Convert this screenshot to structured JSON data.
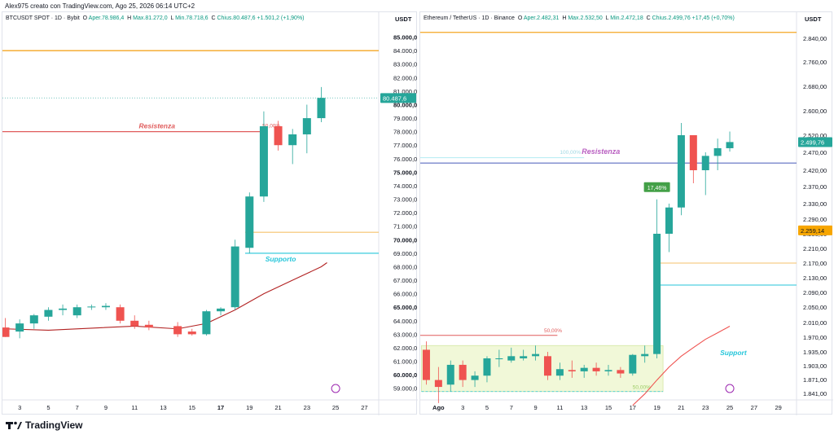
{
  "header": {
    "creator": "Alex975 creato con TradingView.com, Ago 25, 2026 06:14 UTC+2"
  },
  "footer": {
    "brand": "TradingView"
  },
  "chart_data": [
    {
      "type": "candlestick",
      "legend": {
        "symbol": "BTCUSDT SPOT · 1D · Bybit",
        "open_label": "O",
        "open": "Aper.78.986,4",
        "high_label": "H",
        "high": "Max.81.272,0",
        "low_label": "L",
        "low": "Min.78.718,6",
        "close_label": "C",
        "close": "Chius.80.487,6",
        "change": "+1.501,2 (+1,90%)"
      },
      "unit": "USDT",
      "ylim": [
        58500,
        86000
      ],
      "y_ticks": [
        "59.000,0",
        "60.000,0",
        "61.000,0",
        "62.000,0",
        "63.000,0",
        "64.000,0",
        "65.000,0",
        "66.000,0",
        "67.000,0",
        "68.000,0",
        "69.000,0",
        "70.000,0",
        "71.000,0",
        "72.000,0",
        "73.000,0",
        "74.000,0",
        "75.000,0",
        "76.000,0",
        "77.000,0",
        "78.000,0",
        "79.000,0",
        "80.000,0",
        "81.000,0",
        "82.000,0",
        "83.000,0",
        "84.000,0",
        "85.000,0"
      ],
      "y_tick_values": [
        59000,
        60000,
        61000,
        62000,
        63000,
        64000,
        65000,
        66000,
        67000,
        68000,
        69000,
        70000,
        71000,
        72000,
        73000,
        74000,
        75000,
        76000,
        77000,
        78000,
        79000,
        80000,
        81000,
        82000,
        83000,
        84000,
        85000
      ],
      "x_ticks": [
        "3",
        "5",
        "7",
        "9",
        "11",
        "13",
        "15",
        "17",
        "19",
        "21",
        "23",
        "25",
        "27"
      ],
      "x_tick_values": [
        3,
        5,
        7,
        9,
        11,
        13,
        15,
        17,
        19,
        21,
        23,
        25,
        27
      ],
      "xlim": [
        1.8,
        28
      ],
      "last_price": "80.487,6",
      "last_price_value": 80487.6,
      "candles": [
        {
          "x": 2,
          "o": 63500,
          "h": 64200,
          "l": 62800,
          "c": 62800
        },
        {
          "x": 3,
          "o": 63200,
          "h": 64100,
          "l": 62700,
          "c": 63800
        },
        {
          "x": 4,
          "o": 63800,
          "h": 64500,
          "l": 63400,
          "c": 64400
        },
        {
          "x": 5,
          "o": 64300,
          "h": 65000,
          "l": 64000,
          "c": 64800
        },
        {
          "x": 6,
          "o": 64800,
          "h": 65200,
          "l": 64400,
          "c": 64900
        },
        {
          "x": 7,
          "o": 64400,
          "h": 65200,
          "l": 64200,
          "c": 65000
        },
        {
          "x": 8,
          "o": 65000,
          "h": 65200,
          "l": 64800,
          "c": 65050
        },
        {
          "x": 9,
          "o": 65000,
          "h": 65300,
          "l": 64800,
          "c": 65100
        },
        {
          "x": 10,
          "o": 65000,
          "h": 65200,
          "l": 63800,
          "c": 64000
        },
        {
          "x": 11,
          "o": 64000,
          "h": 64400,
          "l": 63400,
          "c": 63600
        },
        {
          "x": 12,
          "o": 63700,
          "h": 64000,
          "l": 63300,
          "c": 63500
        },
        {
          "x": 14,
          "o": 63600,
          "h": 63900,
          "l": 62800,
          "c": 63000
        },
        {
          "x": 15,
          "o": 63200,
          "h": 63400,
          "l": 62900,
          "c": 63000
        },
        {
          "x": 16,
          "o": 63000,
          "h": 64800,
          "l": 62900,
          "c": 64700
        },
        {
          "x": 17,
          "o": 64700,
          "h": 65000,
          "l": 64400,
          "c": 64900
        },
        {
          "x": 18,
          "o": 65000,
          "h": 70000,
          "l": 64800,
          "c": 69500
        },
        {
          "x": 19,
          "o": 69400,
          "h": 73500,
          "l": 69000,
          "c": 73200
        },
        {
          "x": 20,
          "o": 73200,
          "h": 79500,
          "l": 72800,
          "c": 78400
        },
        {
          "x": 21,
          "o": 78400,
          "h": 78800,
          "l": 76600,
          "c": 77000
        },
        {
          "x": 22,
          "o": 77000,
          "h": 78200,
          "l": 75600,
          "c": 77800
        },
        {
          "x": 23,
          "o": 77800,
          "h": 80000,
          "l": 76400,
          "c": 79000
        },
        {
          "x": 24,
          "o": 79000,
          "h": 81300,
          "l": 78700,
          "c": 80500
        }
      ],
      "ma": [
        [
          2,
          63400
        ],
        [
          5,
          63300
        ],
        [
          8,
          63450
        ],
        [
          11,
          63600
        ],
        [
          14,
          63400
        ],
        [
          16,
          63800
        ],
        [
          18,
          64800
        ],
        [
          20,
          66000
        ],
        [
          22,
          67000
        ],
        [
          24,
          68000
        ],
        [
          24.4,
          68300
        ]
      ],
      "levels": [
        {
          "y": 84000,
          "color": "#f5a623",
          "kind": "full"
        },
        {
          "y": 80500,
          "color": "#26a69a",
          "kind": "dotted"
        },
        {
          "y": 78000,
          "color": "#e05c5c",
          "kind": "resistance"
        },
        {
          "y": 70550,
          "color": "#f5c26b",
          "kind": "support-upper"
        },
        {
          "y": 69000,
          "color": "#26c6da",
          "kind": "support"
        }
      ],
      "annotations": {
        "resistance": "Resistenza",
        "resistance_pct": "50,00%",
        "support": "Supporto"
      },
      "colors": {
        "up": "#26a69a",
        "down": "#ef5350",
        "ma": "#b22222"
      }
    },
    {
      "type": "candlestick",
      "legend": {
        "symbol": "Ethereum / TetherUS · 1D · Binance",
        "open_label": "O",
        "open": "Aper.2.482,31",
        "high_label": "H",
        "high": "Max.2.532,50",
        "low_label": "L",
        "low": "Min.2.472,18",
        "close_label": "C",
        "close": "Chius.2.499,76",
        "change": "+17,45 (+0,70%)"
      },
      "unit": "USDT",
      "y_ticks": [
        "1.841,00",
        "1.871,00",
        "1.903,00",
        "1.935,00",
        "1.970,00",
        "2.010,00",
        "2.050,00",
        "2.090,00",
        "2.130,00",
        "2.170,00",
        "2.210,00",
        "2.250,00",
        "2.290,00",
        "2.330,00",
        "2.370,00",
        "2.420,00",
        "2.470,00",
        "2.520,00",
        "2.600,00",
        "2.680,00",
        "2.760,00",
        "2.840,00"
      ],
      "x_ticks": [
        "Ago",
        "3",
        "5",
        "7",
        "9",
        "11",
        "13",
        "15",
        "17",
        "19",
        "21",
        "23",
        "25",
        "27",
        "29"
      ],
      "x_tick_values": [
        1,
        3,
        5,
        7,
        9,
        11,
        13,
        15,
        17,
        19,
        21,
        23,
        25,
        27,
        29
      ],
      "xlim": [
        -0.5,
        30.5
      ],
      "last_price": "2.499,76",
      "last_price_value": 2499.76,
      "marker_price": "2.259,14",
      "marker_price_value": 2259.14,
      "candles": [
        {
          "x": 0,
          "o": 1940,
          "h": 1960,
          "l": 1860,
          "c": 1870
        },
        {
          "x": 1,
          "o": 1870,
          "h": 1900,
          "l": 1820,
          "c": 1855
        },
        {
          "x": 2,
          "o": 1860,
          "h": 1915,
          "l": 1845,
          "c": 1905
        },
        {
          "x": 3,
          "o": 1905,
          "h": 1915,
          "l": 1855,
          "c": 1870
        },
        {
          "x": 4,
          "o": 1870,
          "h": 1890,
          "l": 1855,
          "c": 1880
        },
        {
          "x": 5,
          "o": 1880,
          "h": 1925,
          "l": 1865,
          "c": 1920
        },
        {
          "x": 6,
          "o": 1918,
          "h": 1940,
          "l": 1900,
          "c": 1920
        },
        {
          "x": 7,
          "o": 1915,
          "h": 1945,
          "l": 1910,
          "c": 1925
        },
        {
          "x": 8,
          "o": 1920,
          "h": 1940,
          "l": 1915,
          "c": 1925
        },
        {
          "x": 9,
          "o": 1925,
          "h": 1950,
          "l": 1915,
          "c": 1930
        },
        {
          "x": 10,
          "o": 1925,
          "h": 1935,
          "l": 1870,
          "c": 1880
        },
        {
          "x": 11,
          "o": 1880,
          "h": 1910,
          "l": 1870,
          "c": 1895
        },
        {
          "x": 12,
          "o": 1893,
          "h": 1915,
          "l": 1875,
          "c": 1890
        },
        {
          "x": 13,
          "o": 1890,
          "h": 1905,
          "l": 1875,
          "c": 1898
        },
        {
          "x": 14,
          "o": 1898,
          "h": 1910,
          "l": 1880,
          "c": 1890
        },
        {
          "x": 15,
          "o": 1890,
          "h": 1905,
          "l": 1880,
          "c": 1893
        },
        {
          "x": 16,
          "o": 1893,
          "h": 1900,
          "l": 1875,
          "c": 1885
        },
        {
          "x": 17,
          "o": 1885,
          "h": 1930,
          "l": 1880,
          "c": 1928
        },
        {
          "x": 18,
          "o": 1925,
          "h": 1950,
          "l": 1910,
          "c": 1930
        },
        {
          "x": 19,
          "o": 1930,
          "h": 2340,
          "l": 1920,
          "c": 2250
        },
        {
          "x": 20,
          "o": 2250,
          "h": 2330,
          "l": 2200,
          "c": 2320
        },
        {
          "x": 21,
          "o": 2320,
          "h": 2560,
          "l": 2300,
          "c": 2520
        },
        {
          "x": 22,
          "o": 2520,
          "h": 2520,
          "l": 2380,
          "c": 2420
        },
        {
          "x": 23,
          "o": 2420,
          "h": 2470,
          "l": 2350,
          "c": 2460
        },
        {
          "x": 24,
          "o": 2460,
          "h": 2510,
          "l": 2420,
          "c": 2482
        },
        {
          "x": 25,
          "o": 2482,
          "h": 2532,
          "l": 2472,
          "c": 2500
        }
      ],
      "ma": [
        [
          17,
          1815
        ],
        [
          18,
          1840
        ],
        [
          19,
          1870
        ],
        [
          20,
          1900
        ],
        [
          21,
          1925
        ],
        [
          22,
          1945
        ],
        [
          23,
          1965
        ],
        [
          24,
          1982
        ],
        [
          25,
          2000
        ]
      ],
      "levels": [
        {
          "y": 2860,
          "color": "#f5a623",
          "kind": "full"
        },
        {
          "y": 2440,
          "color": "#5c6bc0",
          "kind": "resistance"
        },
        {
          "y": 2455,
          "color": "#b2ebf2",
          "kind": "fib"
        },
        {
          "y": 2170,
          "color": "#f5c26b",
          "kind": "support-upper"
        },
        {
          "y": 2110,
          "color": "#26c6da",
          "kind": "support"
        },
        {
          "y": 1975,
          "color": "#e05c5c",
          "kind": "red-level"
        }
      ],
      "zone": {
        "x0": 0,
        "x1": 19.5,
        "y0": 1845,
        "y1": 1950
      },
      "annotations": {
        "resistance": "Resistenza",
        "fib_pct": "100,00%",
        "support": "Support",
        "red_pct": "50,00%",
        "zone_pct": "50,00%",
        "gain_badge": "17,46%"
      },
      "colors": {
        "up": "#26a69a",
        "down": "#ef5350",
        "ma": "#ef5350"
      }
    }
  ]
}
